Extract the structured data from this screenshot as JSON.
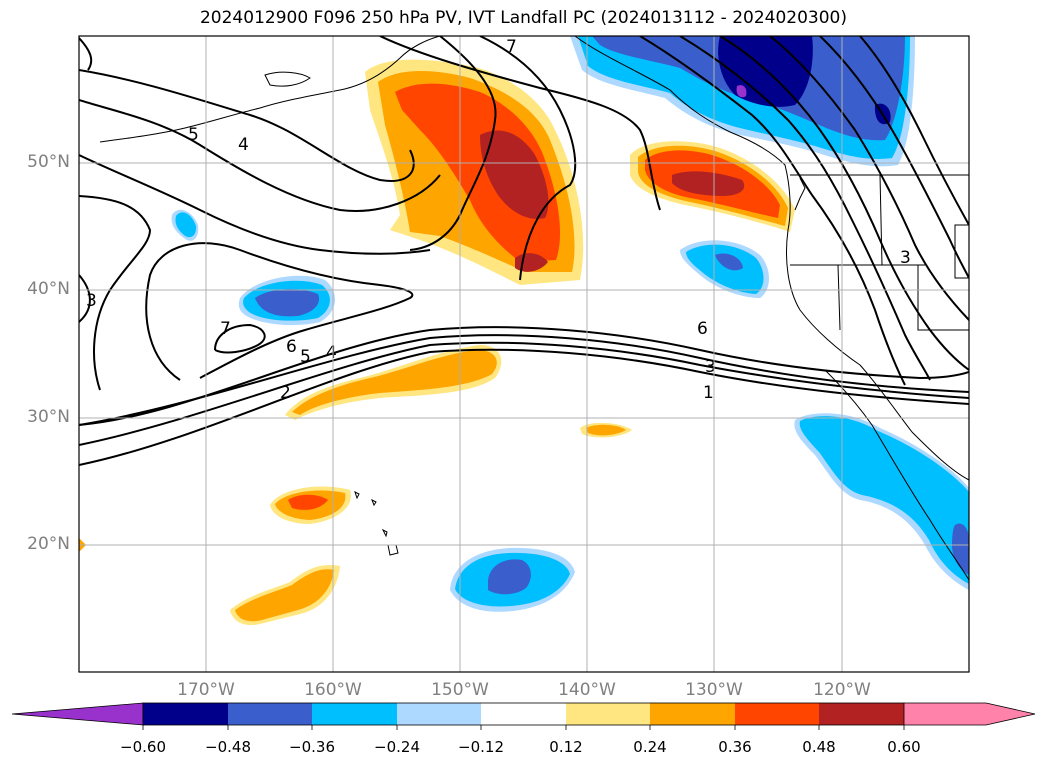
{
  "title": "2024012900 F096 250 hPa PV, IVT Landfall PC (2024013112 - 2024020300)",
  "lat_labels": [
    "50°N",
    "40°N",
    "30°N",
    "20°N"
  ],
  "lon_labels": [
    "170°W",
    "160°W",
    "150°W",
    "140°W",
    "130°W",
    "120°W"
  ],
  "colorbar": {
    "ticks": [
      "−0.60",
      "−0.48",
      "−0.36",
      "−0.24",
      "−0.12",
      "0.12",
      "0.24",
      "0.36",
      "0.48",
      "0.60"
    ],
    "colors": [
      "#9932cc",
      "#00008b",
      "#3a5fcd",
      "#00bfff",
      "#add8ff",
      "#ffffff",
      "#ffe680",
      "#ffa500",
      "#ff4500",
      "#b22222",
      "#ff82ab"
    ]
  },
  "contour_labels": [
    "1",
    "2",
    "3",
    "3",
    "3",
    "4",
    "4",
    "5",
    "5",
    "6",
    "6",
    "7",
    "7"
  ],
  "colors": {
    "neg_dark": "#00008b",
    "neg_mid": "#3a5fcd",
    "neg": "#00bfff",
    "neg_light": "#add8ff",
    "pos_light": "#ffe680",
    "pos": "#ffa500",
    "pos_mid": "#ff4500",
    "pos_dark": "#b22222",
    "purple": "#9932cc"
  }
}
